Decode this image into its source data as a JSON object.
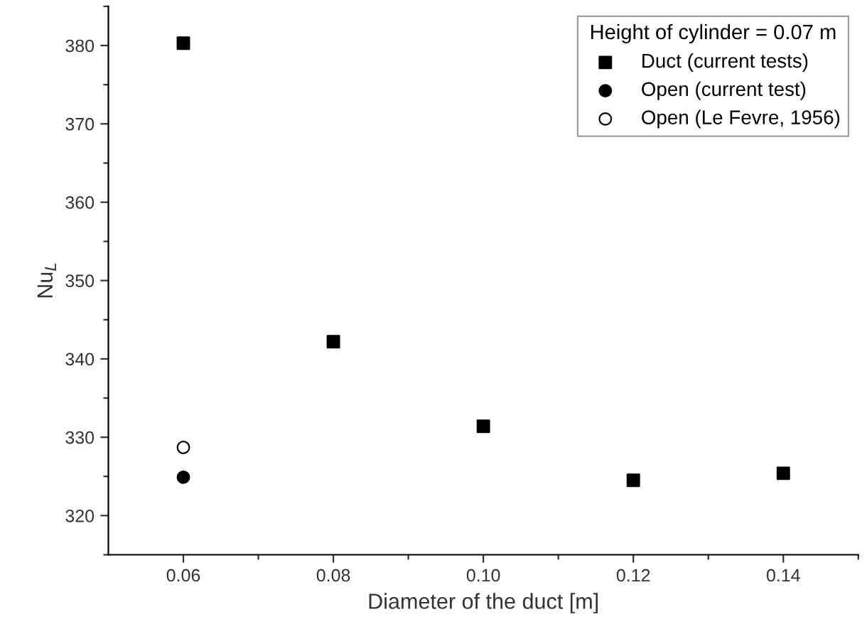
{
  "chart_data": {
    "type": "scatter",
    "xlabel": "Diameter of the duct [m]",
    "ylabel": "Nu$_{L}$",
    "legend_title": "Height of cylinder = 0.07 m",
    "legend": "top right",
    "grid": false,
    "xlim": [
      0.05,
      0.15
    ],
    "xticks": [
      {
        "value": 0.06,
        "label": "0.06"
      },
      {
        "value": 0.07,
        "label": null
      },
      {
        "value": 0.08,
        "label": "0.08"
      },
      {
        "value": 0.09,
        "label": null
      },
      {
        "value": 0.1,
        "label": "0.10"
      },
      {
        "value": 0.11,
        "label": null
      },
      {
        "value": 0.12,
        "label": "0.12"
      },
      {
        "value": 0.13,
        "label": null
      },
      {
        "value": 0.14,
        "label": "0.14"
      },
      {
        "value": 0.15,
        "label": null
      }
    ],
    "ylim": [
      315,
      385
    ],
    "yticks": [
      {
        "value": 315,
        "label": null
      },
      320,
      {
        "value": 325,
        "label": null
      },
      330,
      {
        "value": 335,
        "label": null
      },
      340,
      {
        "value": 345,
        "label": null
      },
      350,
      {
        "value": 355,
        "label": null
      },
      360,
      {
        "value": 365,
        "label": null
      },
      370,
      {
        "value": 375,
        "label": null
      },
      380,
      {
        "value": 385,
        "label": null
      }
    ],
    "series": [
      {
        "name": "Duct (current tests)",
        "color": "#000000",
        "marker": "square",
        "x": [
          0.06,
          0.08,
          0.1,
          0.12,
          0.14
        ],
        "values": [
          380.3,
          342.2,
          331.4,
          324.5,
          325.4
        ]
      },
      {
        "name": "Open (current test)",
        "color": "#000000",
        "marker": "circle",
        "x": [
          0.06
        ],
        "values": [
          324.9
        ]
      },
      {
        "name": "Open (Le Fevre, 1956)",
        "color": "#ffffff",
        "marker": "circle",
        "x": [
          0.06
        ],
        "values": [
          328.7
        ]
      }
    ]
  }
}
